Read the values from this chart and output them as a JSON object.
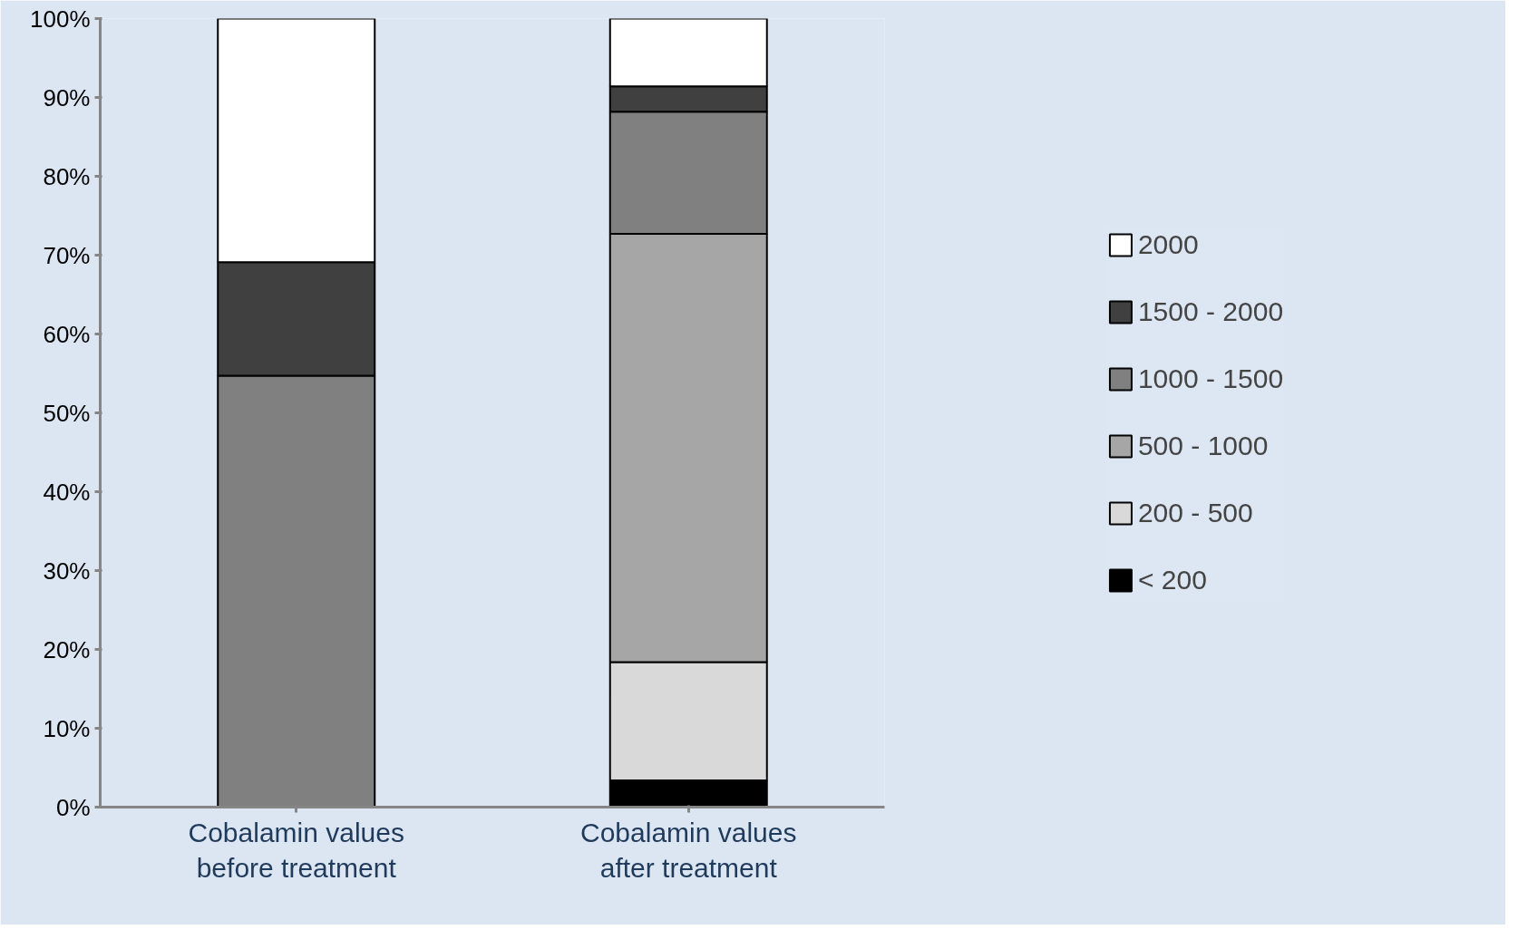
{
  "chart_data": {
    "type": "bar",
    "stacked": true,
    "categories": [
      "Cobalamin values\nbefore treatment",
      "Cobalamin values\nafter treatment"
    ],
    "series": [
      {
        "name": "< 200",
        "color": "#000000",
        "values": [
          0,
          3.4
        ]
      },
      {
        "name": "200 - 500",
        "color": "#d9d9d9",
        "values": [
          0,
          15.0
        ]
      },
      {
        "name": "500 - 1000",
        "color": "#a6a6a6",
        "values": [
          0,
          54.3
        ]
      },
      {
        "name": "1000 - 1500",
        "color": "#808080",
        "values": [
          54.7,
          15.5
        ]
      },
      {
        "name": "1500 - 2000",
        "color": "#404040",
        "values": [
          14.4,
          3.2
        ]
      },
      {
        "name": "2000",
        "color": "#ffffff",
        "values": [
          30.9,
          8.6
        ]
      }
    ],
    "ylim": [
      0,
      100
    ],
    "yticks": [
      {
        "value": 0,
        "label": "0%"
      },
      {
        "value": 10,
        "label": "10%"
      },
      {
        "value": 20,
        "label": "20%"
      },
      {
        "value": 30,
        "label": "30%"
      },
      {
        "value": 40,
        "label": "40%"
      },
      {
        "value": 50,
        "label": "50%"
      },
      {
        "value": 60,
        "label": "60%"
      },
      {
        "value": 70,
        "label": "70%"
      },
      {
        "value": 80,
        "label": "80%"
      },
      {
        "value": 90,
        "label": "90%"
      },
      {
        "value": 100,
        "label": "100%"
      }
    ],
    "grid": false,
    "legend": "right"
  }
}
